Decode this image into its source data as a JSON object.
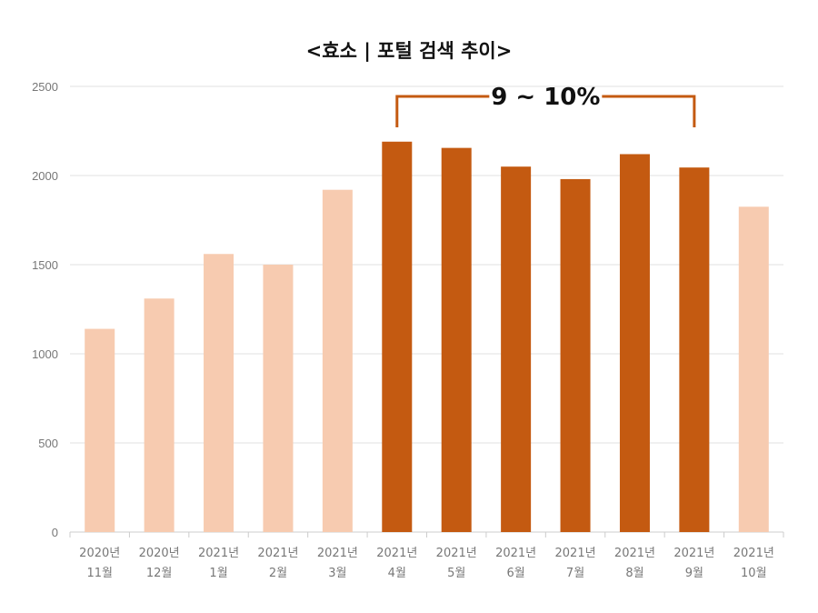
{
  "chart_data": {
    "type": "bar",
    "title": "<효소 | 포털 검색 추이>",
    "xlabel": "",
    "ylabel": "",
    "ylim": [
      0,
      2500
    ],
    "yticks": [
      0,
      500,
      1000,
      1500,
      2000,
      2500
    ],
    "grid": true,
    "categories": [
      [
        "2020년",
        "11월"
      ],
      [
        "2020년",
        "12월"
      ],
      [
        "2021년",
        "1월"
      ],
      [
        "2021년",
        "2월"
      ],
      [
        "2021년",
        "3월"
      ],
      [
        "2021년",
        "4월"
      ],
      [
        "2021년",
        "5월"
      ],
      [
        "2021년",
        "6월"
      ],
      [
        "2021년",
        "7월"
      ],
      [
        "2021년",
        "8월"
      ],
      [
        "2021년",
        "9월"
      ],
      [
        "2021년",
        "10월"
      ]
    ],
    "values": [
      1140,
      1310,
      1560,
      1500,
      1920,
      2190,
      2155,
      2050,
      1980,
      2120,
      2045,
      1825
    ],
    "highlighted": [
      false,
      false,
      false,
      false,
      false,
      true,
      true,
      true,
      true,
      true,
      true,
      false
    ],
    "colors": {
      "normal": "#f7cbb0",
      "highlight": "#c45a11",
      "grid": "#e2e2e2",
      "axis": "#cccccc"
    },
    "annotation": {
      "text": "9 ~ 10%",
      "from_index": 5,
      "to_index": 10
    }
  }
}
